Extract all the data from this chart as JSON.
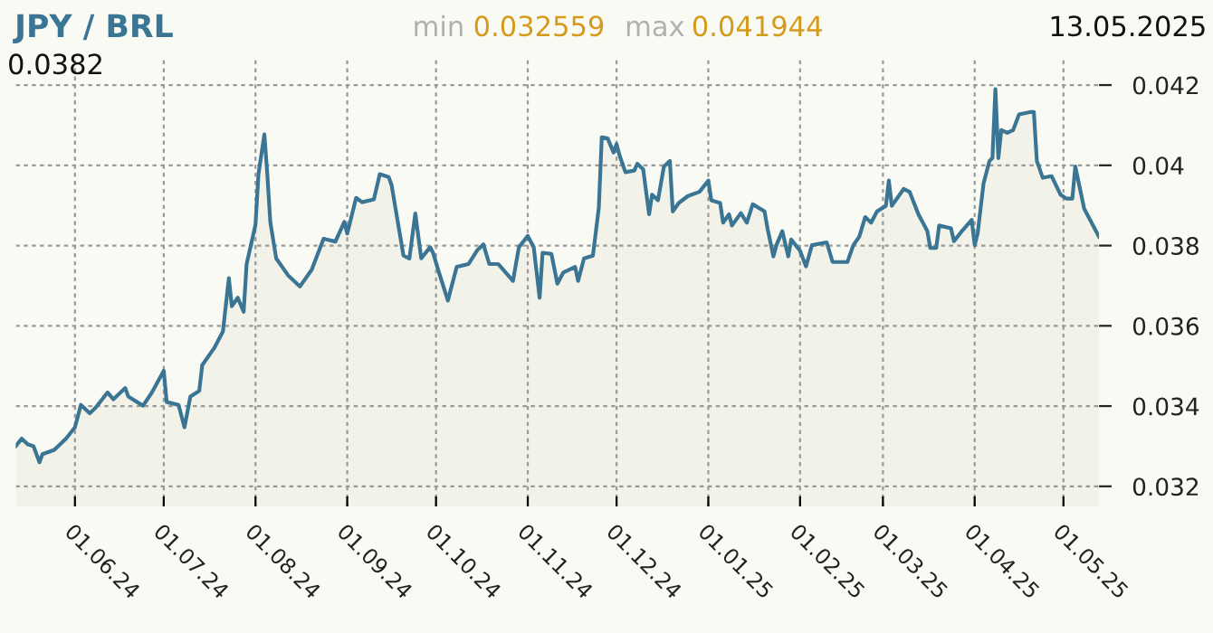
{
  "chart_data": {
    "type": "area",
    "title": "JPY / BRL",
    "annotations": [
      "min",
      "0.032559",
      "max",
      "0.041944",
      "13.05.2025",
      "0.0382"
    ],
    "series": [
      {
        "color": "#3a7594",
        "x": [
          "2024-05-12",
          "2024-05-14",
          "2024-05-16",
          "2024-05-18",
          "2024-05-20",
          "2024-05-21",
          "2024-05-25",
          "2024-05-29",
          "2024-06-01",
          "2024-06-03",
          "2024-06-06",
          "2024-06-08",
          "2024-06-12",
          "2024-06-14",
          "2024-06-18",
          "2024-06-19",
          "2024-06-24",
          "2024-06-27",
          "2024-07-01",
          "2024-07-02",
          "2024-07-06",
          "2024-07-08",
          "2024-07-10",
          "2024-07-13",
          "2024-07-14",
          "2024-07-18",
          "2024-07-21",
          "2024-07-23",
          "2024-07-24",
          "2024-07-26",
          "2024-07-28",
          "2024-07-29",
          "2024-08-01",
          "2024-08-02",
          "2024-08-04",
          "2024-08-05",
          "2024-08-06",
          "2024-08-08",
          "2024-08-12",
          "2024-08-16",
          "2024-08-20",
          "2024-08-24",
          "2024-08-28",
          "2024-08-31",
          "2024-09-01",
          "2024-09-04",
          "2024-09-06",
          "2024-09-10",
          "2024-09-12",
          "2024-09-15",
          "2024-09-16",
          "2024-09-20",
          "2024-09-22",
          "2024-09-24",
          "2024-09-26",
          "2024-09-29",
          "2024-09-30",
          "2024-10-02",
          "2024-10-05",
          "2024-10-08",
          "2024-10-12",
          "2024-10-15",
          "2024-10-17",
          "2024-10-19",
          "2024-10-22",
          "2024-10-27",
          "2024-10-29",
          "2024-11-01",
          "2024-11-03",
          "2024-11-05",
          "2024-11-06",
          "2024-11-09",
          "2024-11-11",
          "2024-11-13",
          "2024-11-17",
          "2024-11-18",
          "2024-11-20",
          "2024-11-23",
          "2024-11-25",
          "2024-11-26",
          "2024-11-28",
          "2024-11-30",
          "2024-12-01",
          "2024-12-02",
          "2024-12-04",
          "2024-12-07",
          "2024-12-08",
          "2024-12-10",
          "2024-12-12",
          "2024-12-13",
          "2024-12-15",
          "2024-12-17",
          "2024-12-19",
          "2024-12-20",
          "2024-12-22",
          "2024-12-25",
          "2024-12-29",
          "2025-01-01",
          "2025-01-02",
          "2025-01-05",
          "2025-01-06",
          "2025-01-08",
          "2025-01-09",
          "2025-01-12",
          "2025-01-14",
          "2025-01-16",
          "2025-01-20",
          "2025-01-21",
          "2025-01-23",
          "2025-01-24",
          "2025-01-26",
          "2025-01-28",
          "2025-01-29",
          "2025-02-01",
          "2025-02-03",
          "2025-02-05",
          "2025-02-10",
          "2025-02-12",
          "2025-02-17",
          "2025-02-19",
          "2025-02-21",
          "2025-02-23",
          "2025-02-25",
          "2025-02-27",
          "2025-03-02",
          "2025-03-03",
          "2025-03-04",
          "2025-03-08",
          "2025-03-10",
          "2025-03-13",
          "2025-03-16",
          "2025-03-17",
          "2025-03-19",
          "2025-03-20",
          "2025-03-24",
          "2025-03-25",
          "2025-03-28",
          "2025-03-31",
          "2025-04-01",
          "2025-04-02",
          "2025-04-04",
          "2025-04-06",
          "2025-04-07",
          "2025-04-08",
          "2025-04-09",
          "2025-04-10",
          "2025-04-12",
          "2025-04-14",
          "2025-04-16",
          "2025-04-20",
          "2025-04-21",
          "2025-04-22",
          "2025-04-24",
          "2025-04-27",
          "2025-04-30",
          "2025-05-02",
          "2025-05-04",
          "2025-05-05",
          "2025-05-08",
          "2025-05-13"
        ],
        "values": [
          0.033,
          0.03319,
          0.03305,
          0.033,
          0.0326,
          0.0328,
          0.03291,
          0.03319,
          0.03347,
          0.03403,
          0.03382,
          0.03396,
          0.03434,
          0.03417,
          0.03445,
          0.03424,
          0.03401,
          0.03434,
          0.03488,
          0.0341,
          0.03403,
          0.03347,
          0.03424,
          0.03438,
          0.03502,
          0.03544,
          0.03586,
          0.03719,
          0.03649,
          0.0367,
          0.03635,
          0.03754,
          0.03852,
          0.03978,
          0.04077,
          0.03978,
          0.03859,
          0.03768,
          0.03726,
          0.03698,
          0.0374,
          0.03817,
          0.0381,
          0.03859,
          0.0383,
          0.03919,
          0.03908,
          0.03915,
          0.03978,
          0.03971,
          0.0395,
          0.03775,
          0.03768,
          0.0388,
          0.03768,
          0.03796,
          0.03782,
          0.03733,
          0.03663,
          0.03747,
          0.03754,
          0.03789,
          0.03803,
          0.03754,
          0.03754,
          0.03712,
          0.03796,
          0.03824,
          0.03796,
          0.0367,
          0.03782,
          0.03779,
          0.03705,
          0.03733,
          0.03747,
          0.03712,
          0.03768,
          0.03775,
          0.03894,
          0.0407,
          0.04067,
          0.04032,
          0.04053,
          0.04025,
          0.03983,
          0.03987,
          0.04004,
          0.0399,
          0.03878,
          0.03927,
          0.03913,
          0.03997,
          0.04011,
          0.03885,
          0.03906,
          0.03923,
          0.03934,
          0.03962,
          0.03913,
          0.03906,
          0.03857,
          0.03878,
          0.0385,
          0.03881,
          0.03857,
          0.03903,
          0.03885,
          0.03843,
          0.03773,
          0.03801,
          0.03836,
          0.03773,
          0.03815,
          0.03787,
          0.03748,
          0.03801,
          0.03808,
          0.03759,
          0.03759,
          0.03801,
          0.03822,
          0.03871,
          0.03857,
          0.03885,
          0.03899,
          0.03962,
          0.03899,
          0.03941,
          0.03934,
          0.03878,
          0.03836,
          0.03794,
          0.03794,
          0.0385,
          0.03843,
          0.03811,
          0.03839,
          0.03864,
          0.03801,
          0.0383,
          0.03955,
          0.04011,
          0.04018,
          0.0419,
          0.04018,
          0.04088,
          0.04081,
          0.04088,
          0.04127,
          0.04133,
          0.04133,
          0.04011,
          0.03969,
          0.03973,
          0.03927,
          0.03917,
          0.03917,
          0.03997,
          0.03892,
          0.03822
        ]
      }
    ],
    "xlim": [
      "2024-05-12",
      "2025-05-13"
    ],
    "xticks": [
      {
        "value": "2024-06-01",
        "label": "01.06.24"
      },
      {
        "value": "2024-07-01",
        "label": "01.07.24"
      },
      {
        "value": "2024-08-01",
        "label": "01.08.24"
      },
      {
        "value": "2024-09-01",
        "label": "01.09.24"
      },
      {
        "value": "2024-10-01",
        "label": "01.10.24"
      },
      {
        "value": "2024-11-01",
        "label": "01.11.24"
      },
      {
        "value": "2024-12-01",
        "label": "01.12.24"
      },
      {
        "value": "2025-01-01",
        "label": "01.01.25"
      },
      {
        "value": "2025-02-01",
        "label": "01.02.25"
      },
      {
        "value": "2025-03-01",
        "label": "01.03.25"
      },
      {
        "value": "2025-04-01",
        "label": "01.04.25"
      },
      {
        "value": "2025-05-01",
        "label": "01.05.25"
      }
    ],
    "ylim": [
      0.0315,
      0.0427
    ],
    "yticks": [
      0.032,
      0.034,
      0.036,
      0.038,
      0.04,
      0.042
    ],
    "grid": true,
    "legend": false
  }
}
